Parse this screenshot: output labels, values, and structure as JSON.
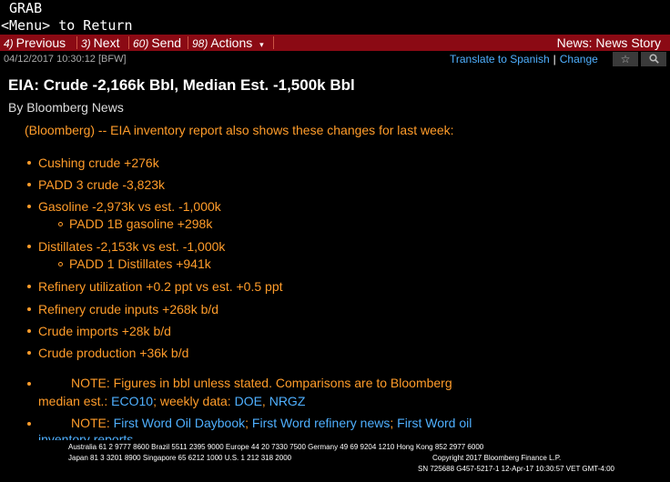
{
  "top": {
    "grab": "GRAB",
    "menu_return": "<Menu> to Return"
  },
  "toolbar": {
    "previous": {
      "num": "4)",
      "label": "Previous"
    },
    "next": {
      "num": "3)",
      "label": "Next"
    },
    "send": {
      "num": "60)",
      "label": "Send"
    },
    "actions": {
      "num": "98)",
      "label": "Actions",
      "caret": "▾"
    },
    "right_title": "News: News Story"
  },
  "meta": {
    "timestamp": "04/12/2017 10:30:12 [BFW]",
    "translate": "Translate to Spanish",
    "sep": "|",
    "change": "Change",
    "star_icon": "☆",
    "search_icon": "🔍"
  },
  "story": {
    "headline": "EIA: Crude -2,166k Bbl, Median Est. -1,500k Bbl",
    "byline": "By Bloomberg News",
    "intro": "(Bloomberg) -- EIA inventory report also shows these changes for last week:",
    "bullets": [
      "Cushing crude +276k",
      "PADD 3 crude -3,823k",
      "Gasoline -2,973k vs est. -1,000k",
      "PADD 1B gasoline +298k",
      "Distillates -2,153k vs est. -1,000k",
      "PADD 1 Distillates +941k",
      "Refinery utilization +0.2 ppt vs est. +0.5 ppt",
      "Refinery crude inputs +268k b/d",
      "Crude imports +28k b/d",
      "Crude production +36k b/d"
    ],
    "note1": {
      "text_a": "NOTE: Figures in bbl unless stated. Comparisons are to Bloomberg",
      "text_b": "median est.: ",
      "link1": "ECO10",
      "sep1": "; weekly data: ",
      "link2": "DOE",
      "sep2": ", ",
      "link3": "NRGZ"
    },
    "note2": {
      "prefix": "NOTE: ",
      "link1": "First Word Oil Daybook",
      "sep1": "; ",
      "link2": "First Word refinery news",
      "sep2": "; ",
      "link3": "First Word oil",
      "link3b": "inventory reports"
    }
  },
  "footer": {
    "line1": "Australia 61 2 9777 8600 Brazil 5511 2395 9000 Europe 44 20 7330 7500 Germany 49 69 9204 1210 Hong Kong 852 2977 6000",
    "line2a": "Japan 81 3 3201 8900      Singapore 65 6212 1000      U.S. 1 212 318 2000",
    "line2b": "Copyright 2017 Bloomberg Finance L.P.",
    "line3": "SN 725688 G457-5217-1 12-Apr-17 10:30:57 VET  GMT-4:00"
  },
  "colors": {
    "accent_red": "#8b0a14",
    "text_orange": "#ff9c2a",
    "link_blue": "#4fb0ff"
  }
}
